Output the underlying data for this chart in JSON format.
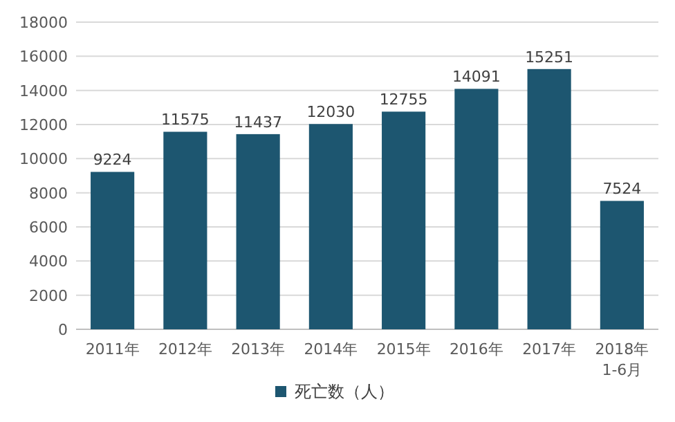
{
  "chart_data": {
    "type": "bar",
    "categories": [
      "2011年",
      "2012年",
      "2013年",
      "2014年",
      "2015年",
      "2016年",
      "2017年",
      "2018年\n1-6月"
    ],
    "series": [
      {
        "name": "死亡数（人）",
        "color": "#1d5670",
        "values": [
          9224,
          11575,
          11437,
          12030,
          12755,
          14091,
          15251,
          7524
        ]
      }
    ],
    "ylim": [
      0,
      18000
    ],
    "yticks": [
      0,
      2000,
      4000,
      6000,
      8000,
      10000,
      12000,
      14000,
      16000,
      18000
    ],
    "grid": "y",
    "legend": "bottom",
    "data_labels": true
  }
}
